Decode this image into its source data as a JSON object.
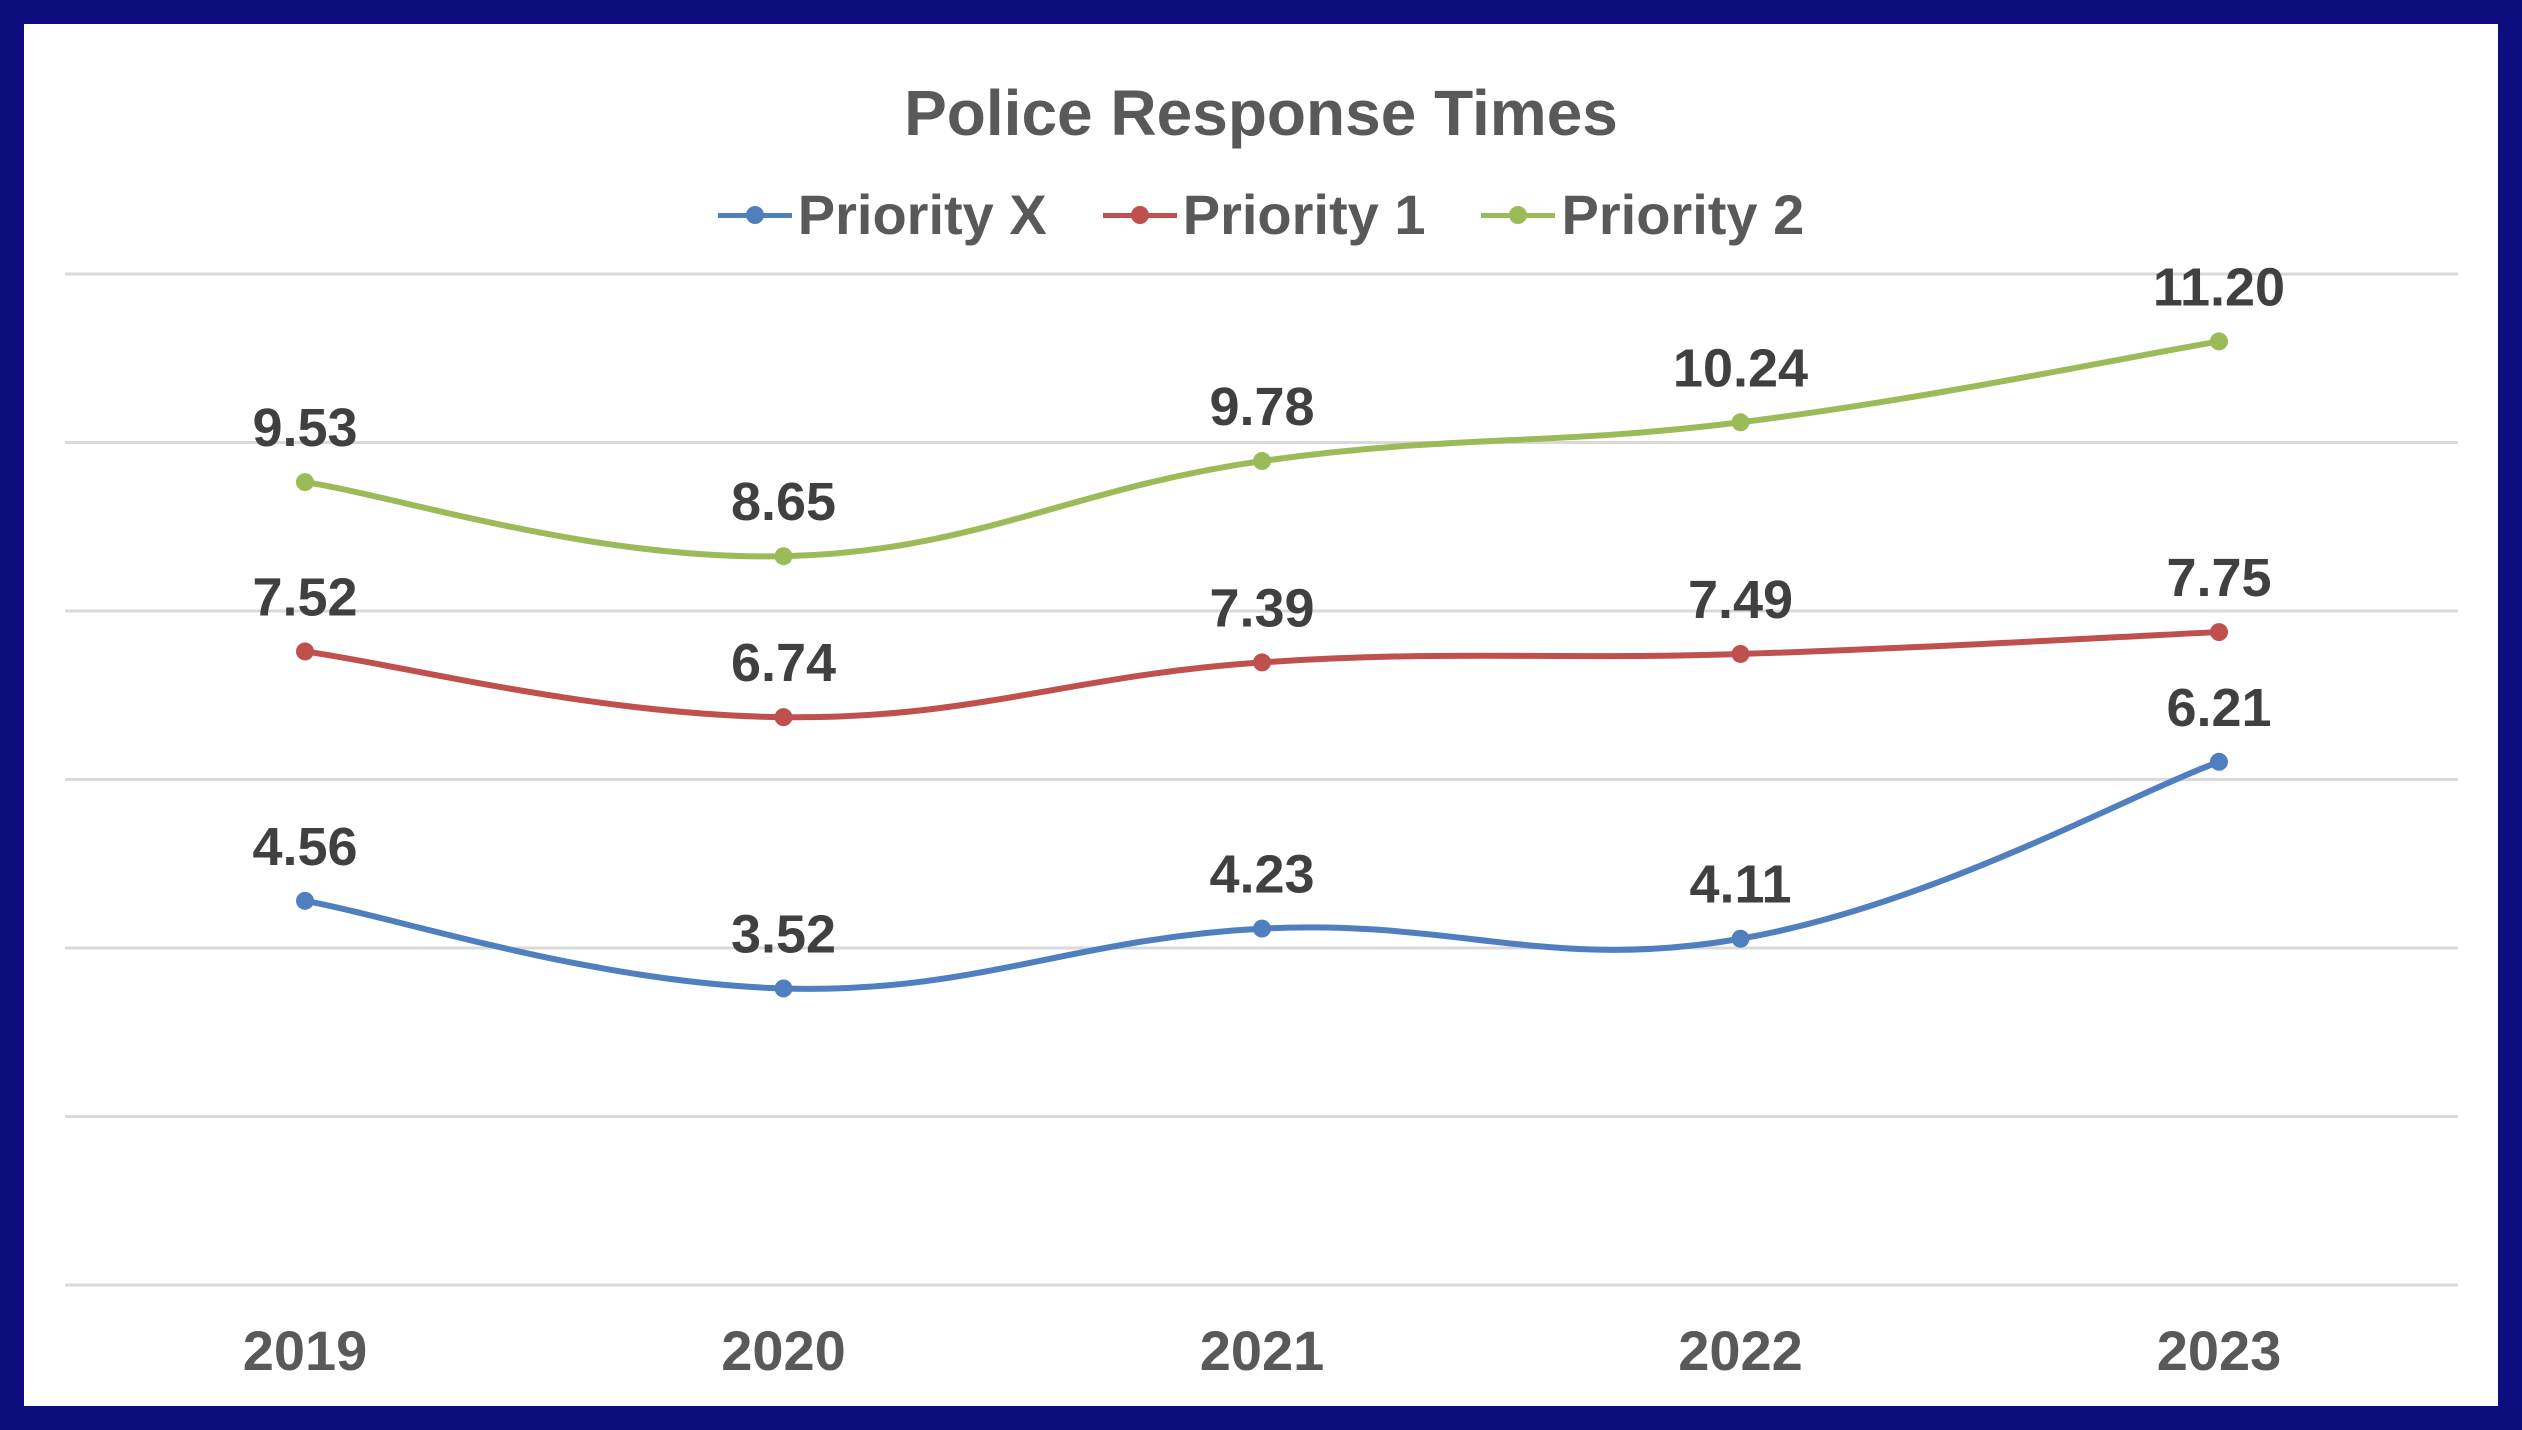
{
  "chart_data": {
    "type": "line",
    "title": "Police Response Times",
    "xlabel": "",
    "ylabel": "",
    "categories": [
      "2019",
      "2020",
      "2021",
      "2022",
      "2023"
    ],
    "ylim": [
      0,
      12
    ],
    "grid": true,
    "legend_position": "top",
    "smoothed": true,
    "series": [
      {
        "name": "Priority X",
        "color": "#4f7fbf",
        "values": [
          4.56,
          3.52,
          4.23,
          4.11,
          6.21
        ],
        "labels": [
          "4.56",
          "3.52",
          "4.23",
          "4.11",
          "6.21"
        ]
      },
      {
        "name": "Priority 1",
        "color": "#c0504d",
        "values": [
          7.52,
          6.74,
          7.39,
          7.49,
          7.75
        ],
        "labels": [
          "7.52",
          "6.74",
          "7.39",
          "7.49",
          "7.75"
        ]
      },
      {
        "name": "Priority 2",
        "color": "#9bbb59",
        "values": [
          9.53,
          8.65,
          9.78,
          10.24,
          11.2
        ],
        "labels": [
          "9.53",
          "8.65",
          "9.78",
          "10.24",
          "11.20"
        ]
      }
    ]
  }
}
